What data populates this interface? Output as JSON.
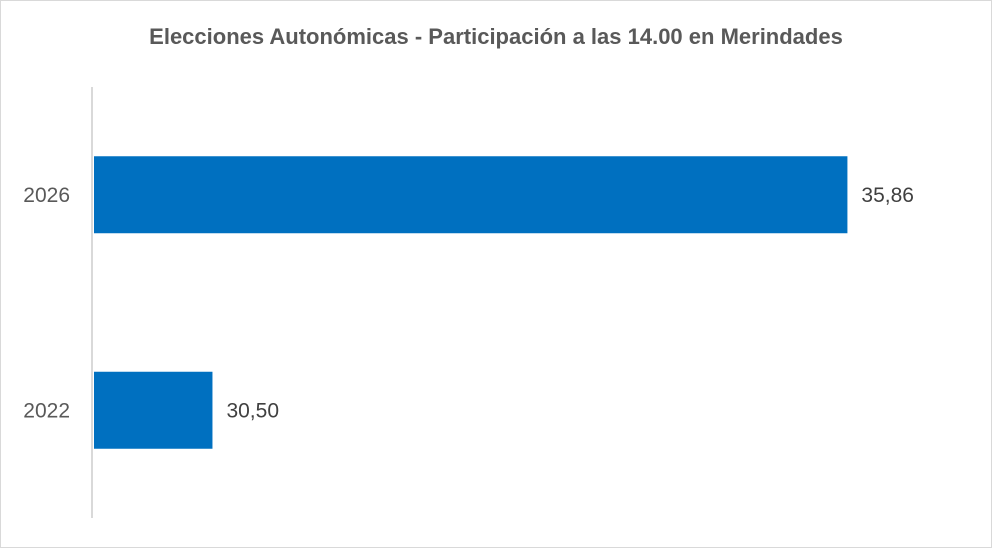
{
  "chart_data": {
    "type": "bar",
    "orientation": "horizontal",
    "title": "Elecciones Autonómicas -  Participación a las 14.00 en Merindades",
    "categories": [
      "2026",
      "2022"
    ],
    "values": [
      35.86,
      30.5
    ],
    "value_labels": [
      "35,86",
      "30,50"
    ],
    "xlim": [
      29.5,
      36
    ],
    "bar_color": "#0070C0",
    "grid": false,
    "legend": "none"
  }
}
